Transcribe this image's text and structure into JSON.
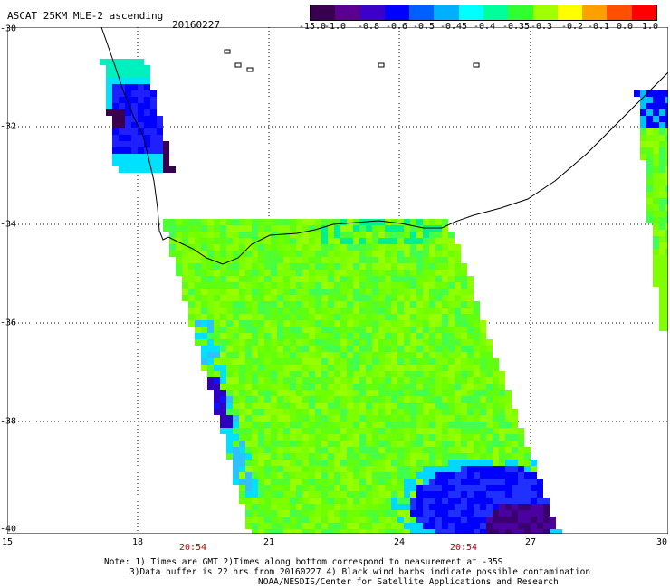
{
  "title": "ASCAT 25KM MLE-2 ascending",
  "date": "20160227",
  "colorbar": {
    "labels": [
      "-15.0",
      "-1.0",
      "-0.8",
      "-0.6",
      "-0.5",
      "-0.45",
      "-0.4",
      "-0.35",
      "-0.3",
      "-0.2",
      "-0.1",
      "0.0",
      "1.0"
    ],
    "colors": [
      "#3a0050",
      "#5a0090",
      "#3c00c8",
      "#0000ff",
      "#0060ff",
      "#00b0ff",
      "#00ffff",
      "#00ff9a",
      "#30ff30",
      "#a0ff00",
      "#ffff00",
      "#ffa000",
      "#ff5000",
      "#ff0000"
    ]
  },
  "map": {
    "lat_labels": [
      "-30",
      "-32",
      "-34",
      "-36",
      "-38",
      "-40"
    ],
    "lon_labels": [
      "15",
      "18",
      "21",
      "24",
      "27",
      "30"
    ],
    "times": [
      "20:54",
      "20:54"
    ]
  },
  "notes": [
    "Note: 1) Times are GMT 2)Times along bottom correspond to measurement at -35S",
    "3)Data buffer is 22 hrs from 20160227 4) Black wind barbs indicate possible contamination",
    "NOAA/NESDIS/Center for Satellite Applications and Research"
  ]
}
